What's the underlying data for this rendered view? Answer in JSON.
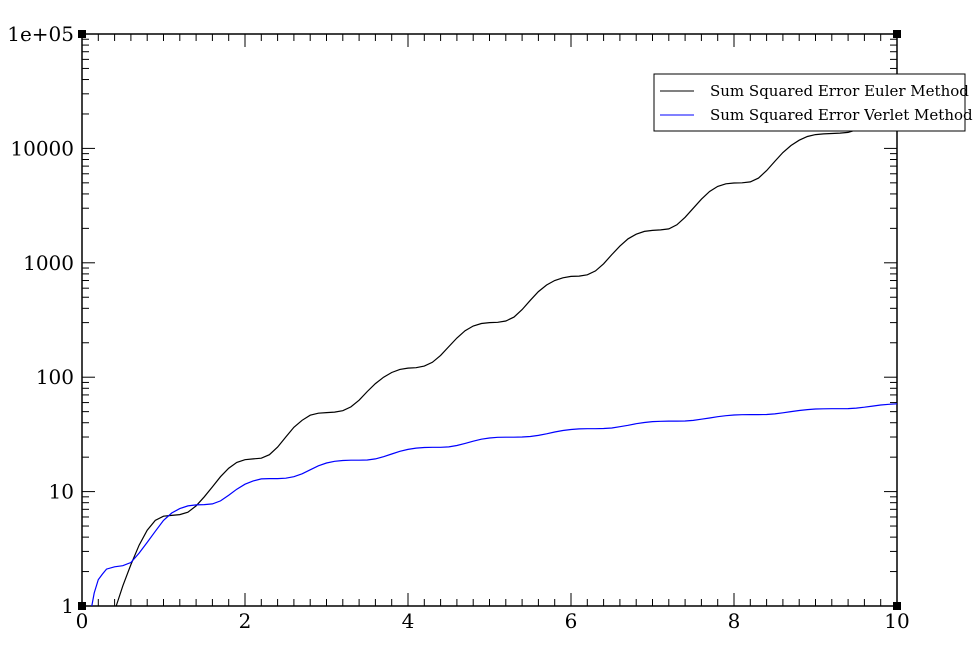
{
  "chart_data": {
    "type": "line",
    "title": "",
    "xlabel": "",
    "ylabel": "",
    "xlim": [
      0,
      10
    ],
    "ylim": [
      1,
      100000
    ],
    "yscale": "log",
    "grid": false,
    "legend_position": "top-right",
    "x_ticks": [
      "0",
      "2",
      "4",
      "6",
      "8",
      "10"
    ],
    "y_ticks": [
      "1",
      "10",
      "100",
      "1000",
      "10000",
      "1e+05"
    ],
    "series": [
      {
        "name": "Sum Squared Error Euler Method",
        "color": "#000000",
        "x": [
          0.42,
          0.5,
          0.6,
          0.7,
          0.8,
          0.9,
          1.0,
          1.1,
          1.2,
          1.3,
          1.4,
          1.5,
          1.6,
          1.7,
          1.8,
          1.9,
          2.0,
          2.1,
          2.2,
          2.3,
          2.4,
          2.5,
          2.6,
          2.7,
          2.8,
          2.9,
          3.0,
          3.1,
          3.2,
          3.3,
          3.4,
          3.5,
          3.6,
          3.7,
          3.8,
          3.9,
          4.0,
          4.1,
          4.2,
          4.3,
          4.4,
          4.5,
          4.6,
          4.7,
          4.8,
          4.9,
          5.0,
          5.1,
          5.2,
          5.3,
          5.4,
          5.5,
          5.6,
          5.7,
          5.8,
          5.9,
          6.0,
          6.1,
          6.2,
          6.3,
          6.4,
          6.5,
          6.6,
          6.7,
          6.8,
          6.9,
          7.0,
          7.1,
          7.2,
          7.3,
          7.4,
          7.5,
          7.6,
          7.7,
          7.8,
          7.9,
          8.0,
          8.1,
          8.2,
          8.3,
          8.4,
          8.5,
          8.6,
          8.7,
          8.8,
          8.9,
          9.0,
          9.1,
          9.2,
          9.3,
          9.4,
          9.5
        ],
        "values": [
          1.0,
          1.5,
          2.3,
          3.4,
          4.6,
          5.6,
          6.1,
          6.2,
          6.3,
          6.6,
          7.5,
          9.0,
          11.0,
          13.5,
          16.0,
          18.0,
          19.0,
          19.3,
          19.6,
          21.0,
          24.5,
          30.0,
          36.5,
          42.0,
          46.5,
          48.5,
          49.0,
          49.5,
          51.0,
          55.0,
          63.0,
          75.0,
          88.0,
          100.0,
          110.0,
          117.0,
          120.0,
          121.0,
          125.0,
          135.0,
          155.0,
          185.0,
          220.0,
          255.0,
          280.0,
          295.0,
          300.0,
          302.0,
          310.0,
          335.0,
          390.0,
          470.0,
          560.0,
          640.0,
          700.0,
          740.0,
          760.0,
          765.0,
          785.0,
          850.0,
          980.0,
          1180.0,
          1400.0,
          1620.0,
          1780.0,
          1880.0,
          1920.0,
          1940.0,
          1980.0,
          2150.0,
          2500.0,
          3000.0,
          3600.0,
          4200.0,
          4650.0,
          4900.0,
          4980.0,
          5000.0,
          5100.0,
          5500.0,
          6400.0,
          7700.0,
          9200.0,
          10600.0,
          11800.0,
          12700.0,
          13200.0,
          13400.0,
          13500.0,
          13600.0,
          13800.0,
          14500.0
        ]
      },
      {
        "name": "Sum Squared Error Verlet Method",
        "color": "#0000ff",
        "x": [
          0.12,
          0.15,
          0.2,
          0.25,
          0.3,
          0.4,
          0.5,
          0.6,
          0.7,
          0.8,
          0.9,
          1.0,
          1.1,
          1.2,
          1.3,
          1.4,
          1.5,
          1.6,
          1.7,
          1.8,
          1.9,
          2.0,
          2.1,
          2.2,
          2.3,
          2.4,
          2.5,
          2.6,
          2.7,
          2.8,
          2.9,
          3.0,
          3.1,
          3.2,
          3.3,
          3.4,
          3.5,
          3.6,
          3.7,
          3.8,
          3.9,
          4.0,
          4.1,
          4.2,
          4.3,
          4.4,
          4.5,
          4.6,
          4.7,
          4.8,
          4.9,
          5.0,
          5.1,
          5.2,
          5.3,
          5.4,
          5.5,
          5.6,
          5.7,
          5.8,
          5.9,
          6.0,
          6.1,
          6.2,
          6.3,
          6.4,
          6.5,
          6.6,
          6.7,
          6.8,
          6.9,
          7.0,
          7.1,
          7.2,
          7.3,
          7.4,
          7.5,
          7.6,
          7.7,
          7.8,
          7.9,
          8.0,
          8.1,
          8.2,
          8.3,
          8.4,
          8.5,
          8.6,
          8.7,
          8.8,
          8.9,
          9.0,
          9.1,
          9.2,
          9.3,
          9.4,
          9.5,
          9.6,
          9.7,
          9.8,
          9.9,
          10.0
        ],
        "values": [
          1.0,
          1.3,
          1.7,
          1.9,
          2.1,
          2.2,
          2.25,
          2.4,
          2.9,
          3.6,
          4.5,
          5.6,
          6.5,
          7.1,
          7.5,
          7.65,
          7.7,
          7.8,
          8.3,
          9.3,
          10.5,
          11.6,
          12.4,
          12.9,
          13.0,
          13.0,
          13.1,
          13.5,
          14.3,
          15.5,
          16.8,
          17.8,
          18.4,
          18.7,
          18.8,
          18.8,
          18.9,
          19.3,
          20.2,
          21.3,
          22.5,
          23.4,
          24.0,
          24.3,
          24.4,
          24.4,
          24.6,
          25.3,
          26.4,
          27.6,
          28.7,
          29.4,
          29.8,
          29.9,
          29.9,
          30.0,
          30.3,
          31.0,
          32.0,
          33.2,
          34.2,
          34.9,
          35.3,
          35.5,
          35.5,
          35.6,
          36.0,
          36.9,
          38.0,
          39.2,
          40.2,
          40.9,
          41.2,
          41.3,
          41.3,
          41.4,
          41.9,
          42.9,
          44.0,
          45.2,
          46.1,
          46.7,
          47.0,
          47.1,
          47.1,
          47.2,
          47.8,
          48.8,
          50.0,
          51.2,
          52.1,
          52.7,
          52.9,
          53.0,
          53.0,
          53.1,
          53.7,
          54.7,
          55.9,
          57.1,
          58.0,
          58.5
        ]
      }
    ]
  }
}
